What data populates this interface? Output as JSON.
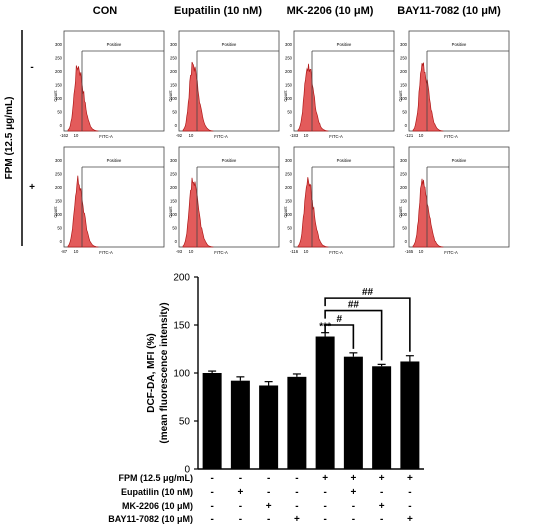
{
  "chart_data": [
    {
      "type": "histogram-grid",
      "columns": [
        "CON",
        "Eupatilin (10 nM)",
        "MK-2206 (10 μM)",
        "BAY11-7082 (10 μM)"
      ],
      "row_axis_label": "FPM (12.5 μg/mL)",
      "row_signs": [
        "-",
        "+"
      ],
      "gate_label": "Positive",
      "xlabel": "FITC-A",
      "ylabel": "Count",
      "y_ticks": [
        "0",
        "50",
        "100",
        "150",
        "200",
        "250",
        "300"
      ],
      "x_tick_10": "10",
      "min_ticks": [
        [
          "-162",
          "-92",
          "-183",
          "-121"
        ],
        [
          "-87",
          "-93",
          "-116",
          "-165"
        ]
      ],
      "fill_color": "#e35b5b"
    },
    {
      "type": "bar",
      "ylabel_lines": [
        "DCF-DA, MFI (%)",
        "(mean fluorescence intensity)"
      ],
      "ylim": [
        0,
        200
      ],
      "y_ticks": [
        "0",
        "50",
        "100",
        "150",
        "200"
      ],
      "values": [
        100,
        92,
        87,
        96,
        138,
        117,
        107,
        112
      ],
      "errors": [
        2,
        4,
        4,
        3,
        4,
        4,
        2,
        6
      ],
      "bar_color": "#000000",
      "significance": {
        "star": "***",
        "brackets": [
          {
            "from": 4,
            "to": 5,
            "label": "#"
          },
          {
            "from": 4,
            "to": 6,
            "label": "##"
          },
          {
            "from": 4,
            "to": 7,
            "label": "##"
          }
        ]
      },
      "conditions": [
        {
          "label": "FPM (12.5 μg/mL)",
          "signs": [
            "-",
            "-",
            "-",
            "-",
            "+",
            "+",
            "+",
            "+"
          ]
        },
        {
          "label": "Eupatilin (10 nM)",
          "signs": [
            "-",
            "+",
            "-",
            "-",
            "-",
            "+",
            "-",
            "-"
          ]
        },
        {
          "label": "MK-2206 (10 μM)",
          "signs": [
            "-",
            "-",
            "+",
            "-",
            "-",
            "-",
            "+",
            "-"
          ]
        },
        {
          "label": "BAY11-7082 (10 μM)",
          "signs": [
            "-",
            "-",
            "-",
            "+",
            "-",
            "-",
            "-",
            "+"
          ]
        }
      ]
    }
  ]
}
